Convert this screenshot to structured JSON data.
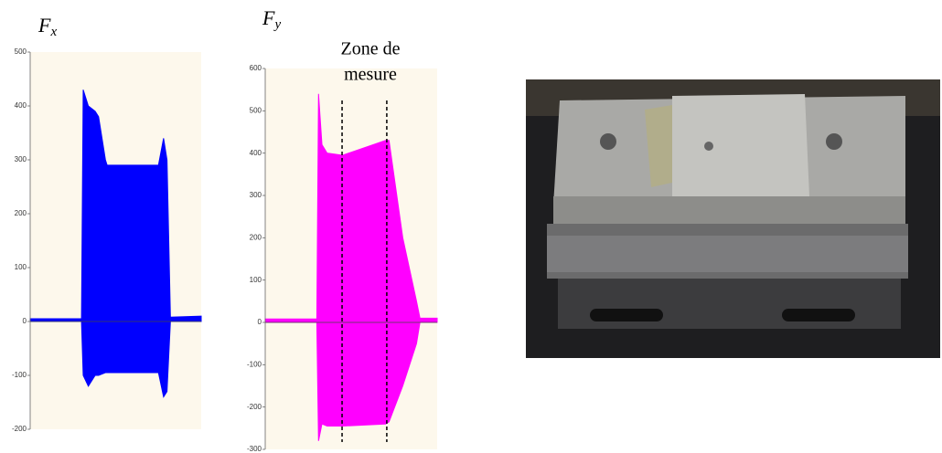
{
  "chart_data": [
    {
      "type": "band",
      "title": "F",
      "title_subscript": "x",
      "x": [
        0,
        30,
        31,
        34,
        38,
        40,
        44,
        45,
        75,
        78,
        80,
        82,
        100
      ],
      "xlim": [
        0,
        100
      ],
      "series": [
        {
          "color": "#0000ff",
          "values": [
            5,
            5,
            430,
            400,
            390,
            380,
            300,
            290,
            290,
            340,
            300,
            8,
            10
          ]
        },
        {
          "color": "#0000ff",
          "values": [
            0,
            0,
            -100,
            -120,
            -100,
            -100,
            -95,
            -95,
            -95,
            -140,
            -130,
            0,
            5
          ]
        }
      ],
      "ylim": [
        -200,
        500
      ],
      "yticks": [
        -200,
        -100,
        0,
        100,
        200,
        300,
        400,
        500
      ]
    },
    {
      "type": "band",
      "title": "F",
      "title_subscript": "y",
      "x": [
        0,
        30,
        31,
        33,
        36,
        45,
        70,
        72,
        80,
        88,
        90,
        100
      ],
      "xlim": [
        0,
        100
      ],
      "series": [
        {
          "color": "#ff00ff",
          "values": [
            8,
            8,
            540,
            420,
            400,
            395,
            430,
            430,
            200,
            50,
            10,
            10
          ]
        },
        {
          "color": "#ff00ff",
          "values": [
            0,
            0,
            -280,
            -240,
            -245,
            -245,
            -240,
            -235,
            -150,
            -50,
            0,
            0
          ]
        }
      ],
      "ylim": [
        -300,
        600
      ],
      "yticks": [
        -300,
        -200,
        -100,
        0,
        100,
        200,
        300,
        400,
        500,
        600
      ],
      "annotation": [
        "Zone de",
        "mesure"
      ],
      "markers_x": [
        44.7,
        70.7
      ]
    }
  ]
}
